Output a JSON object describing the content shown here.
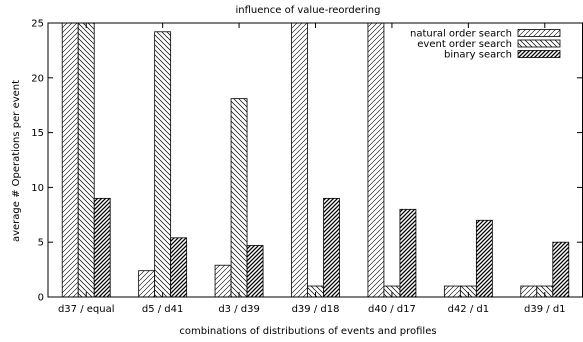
{
  "chart_data": {
    "type": "bar",
    "title": "influence of value-reordering",
    "xlabel": "combinations of distributions of events and profiles",
    "ylabel": "average # Operations per event",
    "ylim": [
      0,
      25
    ],
    "yticks": [
      0,
      5,
      10,
      15,
      20,
      25
    ],
    "grid": false,
    "legend_position": "top-right",
    "categories": [
      "d37 / equal",
      "d5 / d41",
      "d3 / d39",
      "d39 / d18",
      "d40 / d17",
      "d42 / d1",
      "d39 / d1"
    ],
    "series": [
      {
        "name": "natural order search",
        "pattern": "hatch-fine-right",
        "values": [
          25,
          2.4,
          2.9,
          25,
          25,
          1,
          1
        ]
      },
      {
        "name": "event order search",
        "pattern": "hatch-left",
        "values": [
          25,
          24.2,
          18.1,
          1,
          1,
          1,
          1
        ]
      },
      {
        "name": "binary search",
        "pattern": "hatch-dense-right",
        "values": [
          9,
          5.4,
          4.7,
          9,
          8,
          7,
          5
        ]
      }
    ]
  }
}
